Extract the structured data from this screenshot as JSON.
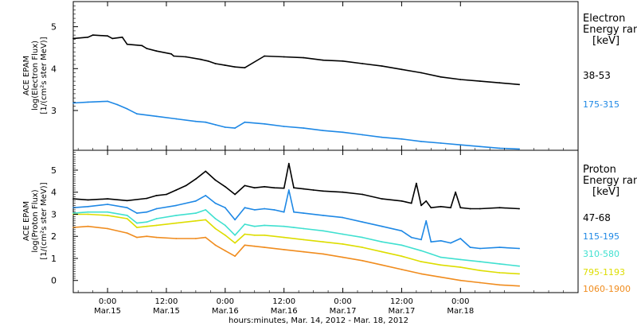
{
  "x_title": "hours:minutes, Mar. 14, 2012 - Mar. 18, 2012",
  "x_ticks": [
    {
      "time": "0:00",
      "date": "Mar.15"
    },
    {
      "time": "12:00",
      "date": "Mar.15"
    },
    {
      "time": "0:00",
      "date": "Mar.16"
    },
    {
      "time": "12:00",
      "date": "Mar.16"
    },
    {
      "time": "0:00",
      "date": "Mar.17"
    },
    {
      "time": "12:00",
      "date": "Mar.17"
    },
    {
      "time": "0:00",
      "date": "Mar.18"
    }
  ],
  "chart_data": [
    {
      "type": "line",
      "panel": "electron",
      "ylabel": [
        "ACE EPAM",
        "log(Electron Flux)",
        "[1/(cm²s ster MeV)]"
      ],
      "legend_title": [
        "Electron",
        "Energy ran",
        "[keV]"
      ],
      "x_unit": "hours since Mar. 14, 2012 00:00",
      "xlim": [
        17,
        120
      ],
      "ylim": [
        2.05,
        5.6
      ],
      "yticks": [
        3,
        4,
        5
      ],
      "series": [
        {
          "name": "38-53",
          "color": "#000000",
          "x": [
            17,
            20,
            21,
            24,
            25,
            27,
            28,
            31,
            32,
            34,
            37,
            37.5,
            40,
            43,
            44.5,
            46,
            48,
            50,
            52,
            56,
            60,
            64,
            68,
            72,
            76,
            80,
            84,
            88,
            92,
            96,
            100,
            104,
            108
          ],
          "y": [
            4.72,
            4.75,
            4.8,
            4.78,
            4.72,
            4.75,
            4.58,
            4.55,
            4.48,
            4.42,
            4.35,
            4.3,
            4.28,
            4.22,
            4.18,
            4.12,
            4.08,
            4.04,
            4.02,
            4.3,
            4.28,
            4.26,
            4.2,
            4.18,
            4.12,
            4.06,
            3.98,
            3.9,
            3.8,
            3.74,
            3.7,
            3.66,
            3.62
          ]
        },
        {
          "name": "175-315",
          "color": "#1e88e5",
          "x": [
            17,
            20,
            24,
            26,
            28,
            30,
            34,
            38,
            42,
            44,
            46,
            48,
            50,
            52,
            56,
            60,
            64,
            68,
            72,
            76,
            80,
            84,
            88,
            92,
            96,
            100,
            104,
            108
          ],
          "y": [
            3.18,
            3.2,
            3.22,
            3.14,
            3.04,
            2.92,
            2.86,
            2.8,
            2.74,
            2.72,
            2.66,
            2.6,
            2.58,
            2.72,
            2.68,
            2.62,
            2.58,
            2.52,
            2.48,
            2.42,
            2.36,
            2.32,
            2.26,
            2.22,
            2.18,
            2.14,
            2.1,
            2.08
          ]
        }
      ]
    },
    {
      "type": "line",
      "panel": "proton",
      "ylabel": [
        "ACE EPAM",
        "log(Proton Flux)",
        "[1/(cm²s ster MeV)]"
      ],
      "legend_title": [
        "Proton",
        "Energy ran",
        "[keV]"
      ],
      "x_unit": "hours since Mar. 14, 2012 00:00",
      "xlim": [
        17,
        120
      ],
      "ylim": [
        -0.55,
        5.9
      ],
      "yticks": [
        0,
        1,
        2,
        3,
        4,
        5
      ],
      "series": [
        {
          "name": "47-68",
          "color": "#000000",
          "x": [
            17,
            20,
            24,
            28,
            32,
            34,
            36,
            38,
            40,
            42,
            44,
            46,
            48,
            50,
            52,
            54,
            56,
            58,
            60,
            61,
            62,
            64,
            66,
            68,
            72,
            76,
            80,
            84,
            86,
            87,
            88,
            89,
            90,
            92,
            94,
            95,
            96,
            98,
            100,
            104,
            108
          ],
          "y": [
            3.7,
            3.65,
            3.7,
            3.62,
            3.72,
            3.85,
            3.9,
            4.1,
            4.3,
            4.6,
            4.95,
            4.55,
            4.25,
            3.9,
            4.3,
            4.2,
            4.25,
            4.2,
            4.18,
            5.3,
            4.2,
            4.15,
            4.1,
            4.05,
            4.0,
            3.9,
            3.7,
            3.6,
            3.5,
            4.4,
            3.4,
            3.6,
            3.3,
            3.35,
            3.3,
            4.0,
            3.3,
            3.25,
            3.25,
            3.3,
            3.25
          ]
        },
        {
          "name": "115-195",
          "color": "#1e88e5",
          "x": [
            17,
            20,
            24,
            28,
            30,
            32,
            34,
            38,
            42,
            44,
            46,
            48,
            50,
            52,
            54,
            56,
            58,
            60,
            61,
            62,
            64,
            68,
            72,
            76,
            80,
            84,
            86,
            88,
            89,
            90,
            92,
            94,
            96,
            98,
            100,
            104,
            108
          ],
          "y": [
            3.3,
            3.35,
            3.45,
            3.3,
            3.05,
            3.1,
            3.25,
            3.4,
            3.6,
            3.85,
            3.5,
            3.3,
            2.75,
            3.3,
            3.2,
            3.25,
            3.2,
            3.1,
            4.1,
            3.1,
            3.05,
            2.95,
            2.85,
            2.65,
            2.45,
            2.25,
            1.95,
            1.85,
            2.7,
            1.75,
            1.8,
            1.7,
            1.9,
            1.5,
            1.45,
            1.5,
            1.45
          ]
        },
        {
          "name": "310-580",
          "color": "#40e0d0",
          "x": [
            17,
            20,
            24,
            28,
            30,
            32,
            34,
            38,
            42,
            44,
            46,
            48,
            50,
            52,
            54,
            56,
            60,
            62,
            64,
            68,
            72,
            76,
            80,
            84,
            88,
            90,
            92,
            96,
            100,
            104,
            108
          ],
          "y": [
            3.05,
            3.1,
            3.1,
            2.95,
            2.6,
            2.65,
            2.8,
            2.95,
            3.05,
            3.2,
            2.8,
            2.5,
            2.05,
            2.55,
            2.45,
            2.5,
            2.45,
            2.4,
            2.35,
            2.25,
            2.1,
            1.95,
            1.75,
            1.6,
            1.35,
            1.2,
            1.05,
            0.95,
            0.85,
            0.75,
            0.65
          ]
        },
        {
          "name": "795-1193",
          "color": "#dddd00",
          "x": [
            17,
            20,
            24,
            28,
            30,
            32,
            34,
            38,
            42,
            44,
            46,
            48,
            50,
            52,
            54,
            56,
            60,
            64,
            68,
            72,
            76,
            80,
            84,
            88,
            92,
            96,
            100,
            104,
            108
          ],
          "y": [
            3.0,
            3.0,
            2.95,
            2.8,
            2.4,
            2.45,
            2.5,
            2.6,
            2.7,
            2.75,
            2.35,
            2.05,
            1.7,
            2.1,
            2.05,
            2.05,
            1.95,
            1.85,
            1.75,
            1.65,
            1.5,
            1.3,
            1.1,
            0.85,
            0.7,
            0.6,
            0.45,
            0.35,
            0.3
          ]
        },
        {
          "name": "1060-1900",
          "color": "#f08c1e",
          "x": [
            17,
            20,
            24,
            28,
            30,
            32,
            34,
            38,
            42,
            44,
            46,
            48,
            50,
            52,
            54,
            56,
            60,
            64,
            68,
            72,
            76,
            80,
            84,
            88,
            92,
            96,
            100,
            104,
            108
          ],
          "y": [
            2.4,
            2.45,
            2.35,
            2.15,
            1.95,
            2.0,
            1.95,
            1.9,
            1.9,
            1.95,
            1.6,
            1.35,
            1.1,
            1.6,
            1.55,
            1.5,
            1.4,
            1.3,
            1.2,
            1.05,
            0.9,
            0.7,
            0.5,
            0.3,
            0.15,
            0.0,
            -0.1,
            -0.2,
            -0.25
          ]
        }
      ]
    }
  ]
}
